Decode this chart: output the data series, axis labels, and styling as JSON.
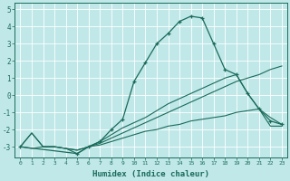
{
  "xlabel": "Humidex (Indice chaleur)",
  "bg_color": "#c0e8e8",
  "grid_color": "#ffffff",
  "line_color": "#1a6b5a",
  "xlim": [
    -0.5,
    23.5
  ],
  "ylim": [
    -3.6,
    5.4
  ],
  "xtick_labels": [
    "0",
    "1",
    "2",
    "3",
    "4",
    "5",
    "6",
    "7",
    "8",
    "9",
    "10",
    "11",
    "12",
    "13",
    "14",
    "15",
    "16",
    "17",
    "18",
    "19",
    "20",
    "21",
    "22",
    "23"
  ],
  "xtick_vals": [
    0,
    1,
    2,
    3,
    4,
    5,
    6,
    7,
    8,
    9,
    10,
    11,
    12,
    13,
    14,
    15,
    16,
    17,
    18,
    19,
    20,
    21,
    22,
    23
  ],
  "ytick_vals": [
    -3,
    -2,
    -1,
    0,
    1,
    2,
    3,
    4,
    5
  ],
  "line1_x": [
    0,
    1,
    2,
    3,
    4,
    5,
    6,
    7,
    8,
    9,
    10,
    11,
    12,
    13,
    14,
    15,
    16,
    17,
    18,
    19,
    20,
    21,
    22,
    23
  ],
  "line1_y": [
    -3.0,
    -3.1,
    -3.0,
    -3.0,
    -3.1,
    -3.2,
    -3.0,
    -2.9,
    -2.7,
    -2.5,
    -2.3,
    -2.1,
    -2.0,
    -1.8,
    -1.7,
    -1.5,
    -1.4,
    -1.3,
    -1.2,
    -1.0,
    -0.9,
    -0.8,
    -1.8,
    -1.8
  ],
  "line2_x": [
    0,
    1,
    2,
    3,
    4,
    5,
    6,
    7,
    8,
    9,
    10,
    11,
    12,
    13,
    14,
    15,
    16,
    17,
    18,
    19,
    20,
    21,
    22,
    23
  ],
  "line2_y": [
    -3.0,
    -2.2,
    -3.0,
    -3.0,
    -3.1,
    -3.2,
    -3.0,
    -2.8,
    -2.5,
    -2.2,
    -1.9,
    -1.6,
    -1.3,
    -1.0,
    -0.7,
    -0.4,
    -0.1,
    0.2,
    0.5,
    0.8,
    1.0,
    1.2,
    1.5,
    1.7
  ],
  "line3_x": [
    0,
    1,
    2,
    3,
    4,
    5,
    6,
    7,
    8,
    9,
    10,
    11,
    12,
    13,
    14,
    15,
    16,
    17,
    18,
    19,
    20,
    21,
    22,
    23
  ],
  "line3_y": [
    -3.0,
    -2.2,
    -3.0,
    -3.0,
    -3.1,
    -3.4,
    -3.0,
    -2.7,
    -2.3,
    -1.9,
    -1.6,
    -1.3,
    -0.9,
    -0.5,
    -0.2,
    0.1,
    0.4,
    0.7,
    1.0,
    1.2,
    0.1,
    -0.8,
    -1.3,
    -1.7
  ],
  "main_x": [
    0,
    5,
    6,
    7,
    8,
    9,
    10,
    11,
    12,
    13,
    14,
    15,
    16,
    17,
    18,
    19,
    20,
    21,
    22,
    23
  ],
  "main_y": [
    -3.0,
    -3.4,
    -3.0,
    -2.7,
    -2.0,
    -1.4,
    0.8,
    1.9,
    3.0,
    3.6,
    4.3,
    4.6,
    4.5,
    3.0,
    1.5,
    1.2,
    0.1,
    -0.8,
    -1.5,
    -1.7
  ]
}
